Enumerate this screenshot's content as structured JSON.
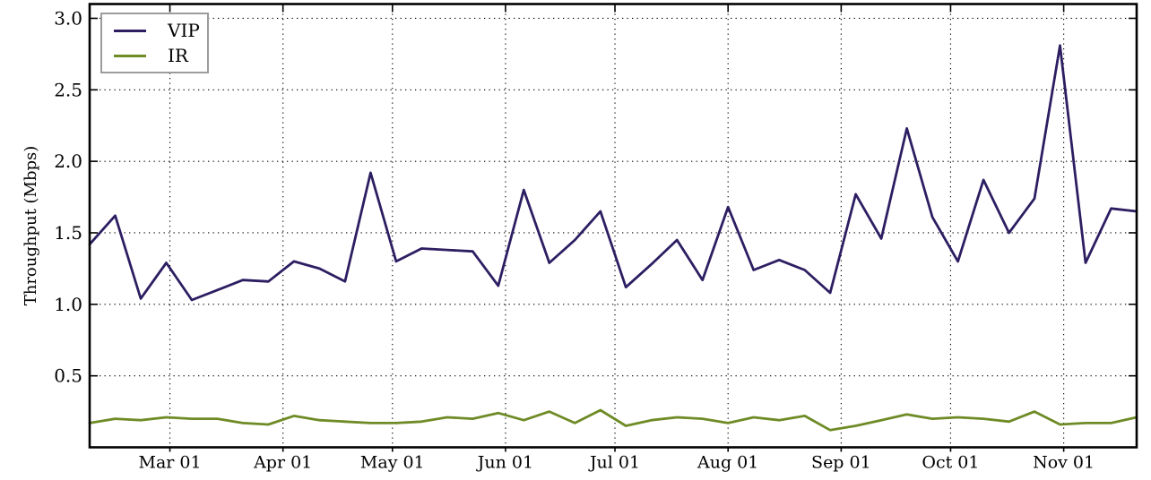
{
  "chart_data": {
    "type": "line",
    "title": "",
    "xlabel": "",
    "ylabel": "Throughput (Mbps)",
    "ylim": [
      0,
      3.1
    ],
    "yticks": [
      "0.5",
      "1.0",
      "1.5",
      "2.0",
      "2.5",
      "3.0"
    ],
    "xticks": [
      {
        "label": "Mar 01",
        "week": 3.143
      },
      {
        "label": "Apr 01",
        "week": 7.571
      },
      {
        "label": "May 01",
        "week": 11.857
      },
      {
        "label": "Jun 01",
        "week": 16.286
      },
      {
        "label": "Jul 01",
        "week": 20.571
      },
      {
        "label": "Aug 01",
        "week": 25.0
      },
      {
        "label": "Sep 01",
        "week": 29.429
      },
      {
        "label": "Oct 01",
        "week": 33.714
      },
      {
        "label": "Nov 01",
        "week": 38.143
      }
    ],
    "x_unit": "weekly samples, index 0-41",
    "grid": "dotted",
    "frame": true,
    "legend_position": "upper-left",
    "legend_border_color": "#9c9c9c",
    "series": [
      {
        "name": "VIP",
        "color": "#2d1e62",
        "values": [
          1.42,
          1.62,
          1.04,
          1.29,
          1.03,
          1.1,
          1.17,
          1.16,
          1.3,
          1.25,
          1.16,
          1.92,
          1.3,
          1.39,
          1.38,
          1.37,
          1.13,
          1.8,
          1.29,
          1.45,
          1.65,
          1.12,
          1.28,
          1.45,
          1.17,
          1.68,
          1.24,
          1.31,
          1.24,
          1.08,
          1.77,
          1.46,
          2.23,
          1.61,
          1.3,
          1.87,
          1.5,
          1.74,
          2.81,
          1.29,
          1.67,
          1.65
        ]
      },
      {
        "name": "IR",
        "color": "#6e8b26",
        "values": [
          0.17,
          0.2,
          0.19,
          0.21,
          0.2,
          0.2,
          0.17,
          0.16,
          0.22,
          0.19,
          0.18,
          0.17,
          0.17,
          0.18,
          0.21,
          0.2,
          0.24,
          0.19,
          0.25,
          0.17,
          0.26,
          0.15,
          0.19,
          0.21,
          0.2,
          0.17,
          0.21,
          0.19,
          0.22,
          0.12,
          0.15,
          0.19,
          0.23,
          0.2,
          0.21,
          0.2,
          0.18,
          0.25,
          0.16,
          0.17,
          0.17,
          0.21
        ]
      }
    ]
  }
}
